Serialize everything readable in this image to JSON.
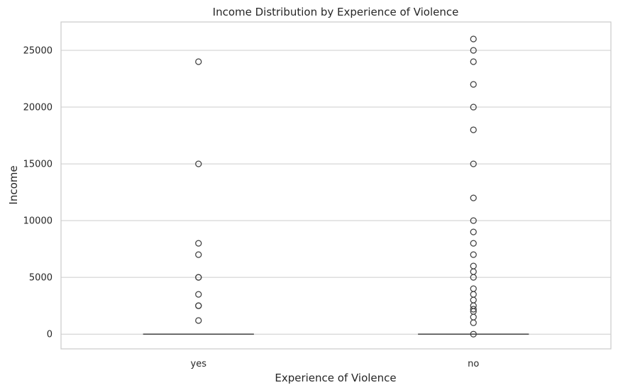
{
  "chart_data": {
    "type": "boxplot",
    "title": "Income Distribution by Experience of Violence",
    "xlabel": "Experience of Violence",
    "ylabel": "Income",
    "ylim": [
      -1300,
      27500
    ],
    "yticks": [
      0,
      5000,
      10000,
      15000,
      20000,
      25000
    ],
    "ytick_labels": [
      "0",
      "5000",
      "10000",
      "15000",
      "20000",
      "25000"
    ],
    "grid": "horizontal",
    "categories": [
      "yes",
      "no"
    ],
    "boxes": [
      {
        "category": "yes",
        "whisker_low": 0,
        "q1": 0,
        "median": 0,
        "q3": 0,
        "whisker_high": 0,
        "outliers": [
          1200,
          2500,
          2500,
          3500,
          5000,
          5000,
          7000,
          8000,
          15000,
          24000
        ]
      },
      {
        "category": "no",
        "whisker_low": 0,
        "q1": 0,
        "median": 0,
        "q3": 0,
        "whisker_high": 0,
        "outliers": [
          0,
          1000,
          1500,
          2000,
          2200,
          2500,
          3000,
          3500,
          4000,
          5000,
          5500,
          6000,
          7000,
          8000,
          9000,
          10000,
          12000,
          15000,
          18000,
          20000,
          22000,
          24000,
          25000,
          26000
        ]
      }
    ],
    "colors": {
      "grid": "#cccccc",
      "frame": "#cccccc",
      "box_line": "#3f3f3f",
      "outlier": "#3f3f3f"
    }
  }
}
